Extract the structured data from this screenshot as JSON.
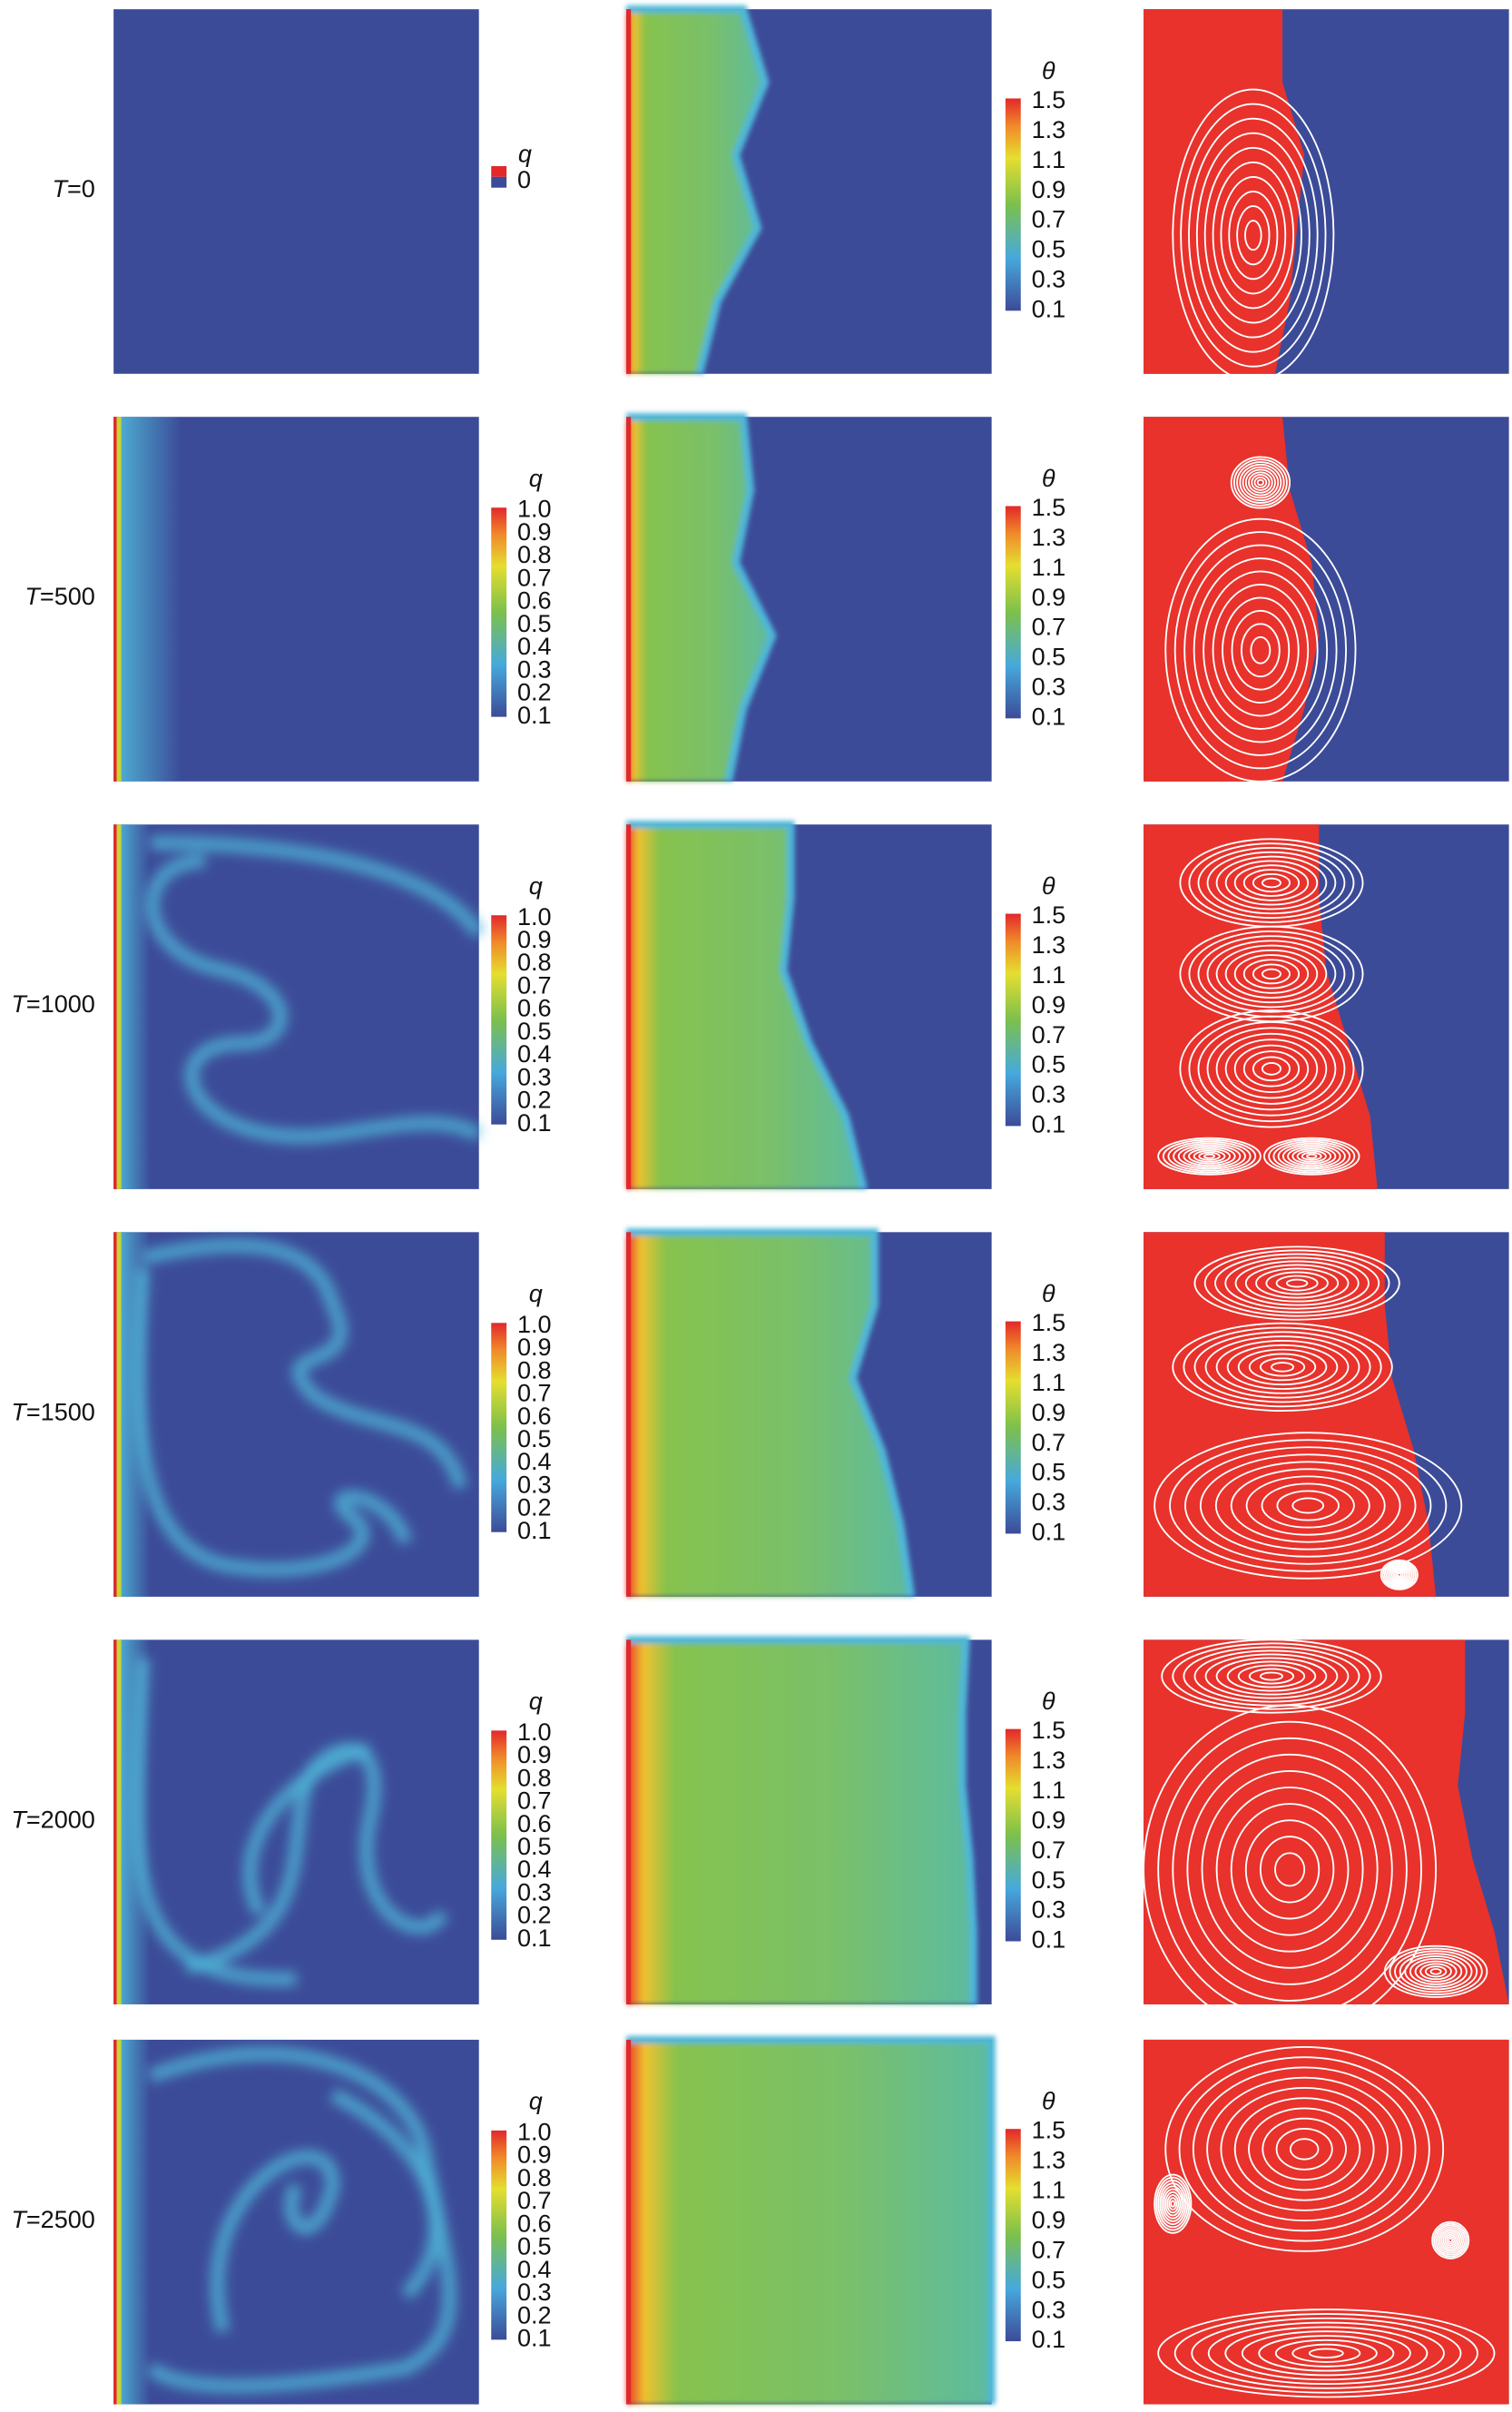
{
  "rows": [
    {
      "label": {
        "symbol": "T",
        "value": "=0"
      },
      "q_bar": {
        "title": "q",
        "ticks": [
          "0"
        ]
      },
      "theta_bar": {
        "title": "θ",
        "ticks": [
          "1.5",
          "1.3",
          "1.1",
          "0.9",
          "0.7",
          "0.5",
          "0.3",
          "0.1"
        ]
      }
    },
    {
      "label": {
        "symbol": "T",
        "value": "=500"
      },
      "q_bar": {
        "title": "q",
        "ticks": [
          "1.0",
          "0.9",
          "0.8",
          "0.7",
          "0.6",
          "0.5",
          "0.4",
          "0.3",
          "0.2",
          "0.1"
        ]
      },
      "theta_bar": {
        "title": "θ",
        "ticks": [
          "1.5",
          "1.3",
          "1.1",
          "0.9",
          "0.7",
          "0.5",
          "0.3",
          "0.1"
        ]
      }
    },
    {
      "label": {
        "symbol": "T",
        "value": "=1000"
      },
      "q_bar": {
        "title": "q",
        "ticks": [
          "1.0",
          "0.9",
          "0.8",
          "0.7",
          "0.6",
          "0.5",
          "0.4",
          "0.3",
          "0.2",
          "0.1"
        ]
      },
      "theta_bar": {
        "title": "θ",
        "ticks": [
          "1.5",
          "1.3",
          "1.1",
          "0.9",
          "0.7",
          "0.5",
          "0.3",
          "0.1"
        ]
      }
    },
    {
      "label": {
        "symbol": "T",
        "value": "=1500"
      },
      "q_bar": {
        "title": "q",
        "ticks": [
          "1.0",
          "0.9",
          "0.8",
          "0.7",
          "0.6",
          "0.5",
          "0.4",
          "0.3",
          "0.2",
          "0.1"
        ]
      },
      "theta_bar": {
        "title": "θ",
        "ticks": [
          "1.5",
          "1.3",
          "1.1",
          "0.9",
          "0.7",
          "0.5",
          "0.3",
          "0.1"
        ]
      }
    },
    {
      "label": {
        "symbol": "T",
        "value": "=2000"
      },
      "q_bar": {
        "title": "q",
        "ticks": [
          "1.0",
          "0.9",
          "0.8",
          "0.7",
          "0.6",
          "0.5",
          "0.4",
          "0.3",
          "0.2",
          "0.1"
        ]
      },
      "theta_bar": {
        "title": "θ",
        "ticks": [
          "1.5",
          "1.3",
          "1.1",
          "0.9",
          "0.7",
          "0.5",
          "0.3",
          "0.1"
        ]
      }
    },
    {
      "label": {
        "symbol": "T",
        "value": "=2500"
      },
      "q_bar": {
        "title": "q",
        "ticks": [
          "1.0",
          "0.9",
          "0.8",
          "0.7",
          "0.6",
          "0.5",
          "0.4",
          "0.3",
          "0.2",
          "0.1"
        ]
      },
      "theta_bar": {
        "title": "θ",
        "ticks": [
          "1.5",
          "1.3",
          "1.1",
          "0.9",
          "0.7",
          "0.5",
          "0.3",
          "0.1"
        ]
      }
    }
  ]
}
